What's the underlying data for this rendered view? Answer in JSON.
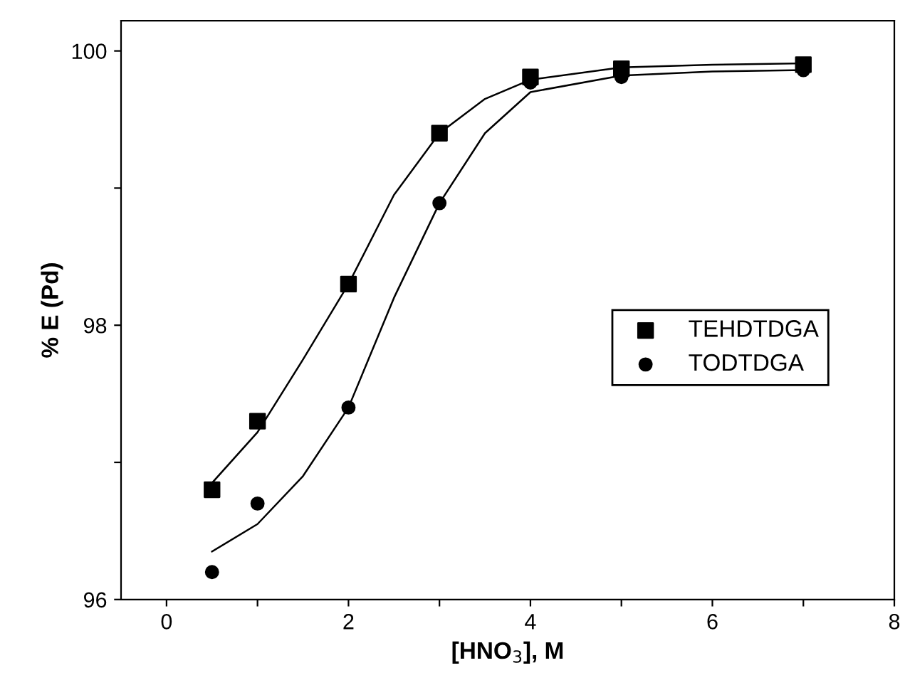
{
  "chart_data": {
    "type": "scatter",
    "xlabel": "[HNO$_{3}$], M",
    "ylabel": "% E (Pd)",
    "xlim": [
      -0.5,
      8
    ],
    "ylim": [
      96,
      100.22
    ],
    "xticks": [
      0,
      {
        "value": 1,
        "label": null
      },
      2,
      {
        "value": 3,
        "label": null
      },
      4,
      {
        "value": 5,
        "label": null
      },
      6,
      {
        "value": 7,
        "label": null
      },
      8
    ],
    "yticks": [
      96,
      {
        "value": 97,
        "label": null
      },
      98,
      {
        "value": 99,
        "label": null
      },
      100
    ],
    "grid": false,
    "legend": "bottom right",
    "series": [
      {
        "name": "TEHDTDGA",
        "color": "#000000",
        "marker": "square",
        "x": [
          0.5,
          1,
          2,
          3,
          4,
          5,
          7
        ],
        "values": [
          96.8,
          97.3,
          98.3,
          99.4,
          99.81,
          99.87,
          99.9
        ]
      },
      {
        "name": "TODTDGA",
        "color": "#000000",
        "marker": "circle",
        "x": [
          0.5,
          1,
          2,
          3,
          4,
          5,
          7
        ],
        "values": [
          96.2,
          96.7,
          97.4,
          98.89,
          99.77,
          99.81,
          99.86
        ]
      },
      {
        "type": "line",
        "color": "#000000",
        "marker": "none",
        "line_style": "solid",
        "x": [
          0.5,
          1,
          1.5,
          2,
          2.5,
          3,
          3.5,
          4,
          5,
          6,
          7
        ],
        "values": [
          96.85,
          97.22,
          97.75,
          98.3,
          98.95,
          99.4,
          99.65,
          99.79,
          99.88,
          99.9,
          99.91
        ]
      },
      {
        "type": "line",
        "color": "#000000",
        "marker": "none",
        "line_style": "solid",
        "x": [
          0.5,
          1,
          1.5,
          2,
          2.5,
          3,
          3.5,
          4,
          5,
          6,
          7
        ],
        "values": [
          96.35,
          96.55,
          96.9,
          97.4,
          98.2,
          98.89,
          99.4,
          99.7,
          99.82,
          99.85,
          99.86
        ]
      }
    ]
  }
}
